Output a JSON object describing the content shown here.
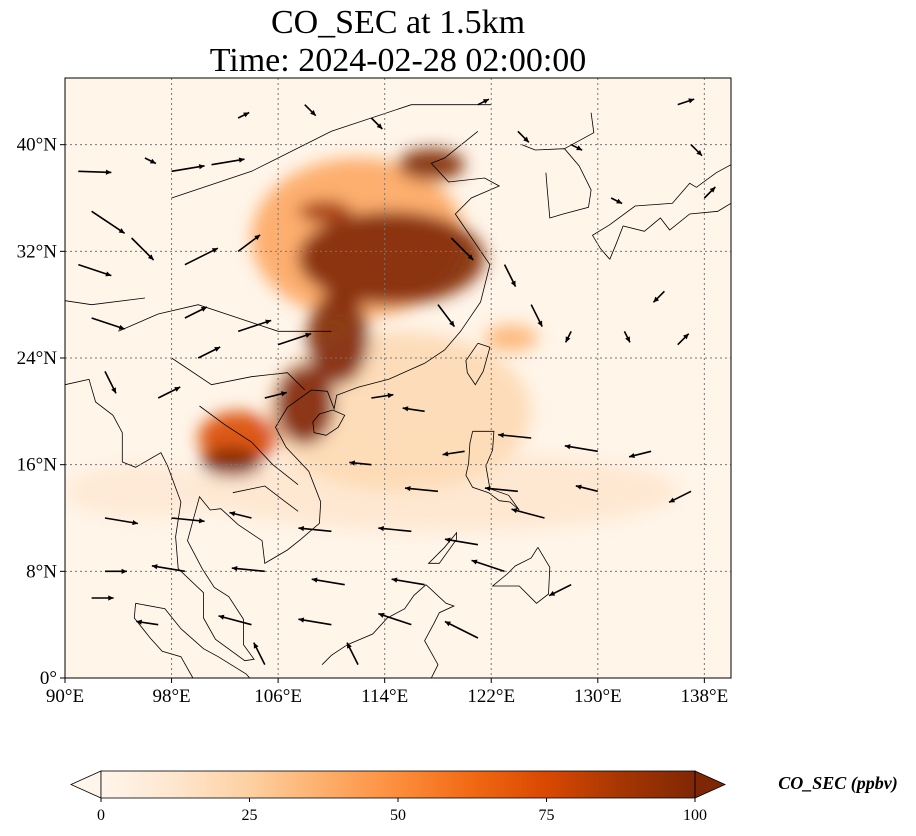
{
  "title": {
    "line1": "CO_SEC at 1.5km",
    "line2": "Time: 2024-02-28 02:00:00"
  },
  "map": {
    "lon_range": [
      90,
      140
    ],
    "lat_range": [
      0,
      45
    ],
    "x_ticks": [
      "90°E",
      "98°E",
      "106°E",
      "114°E",
      "122°E",
      "130°E",
      "138°E"
    ],
    "x_tick_values": [
      90,
      98,
      106,
      114,
      122,
      130,
      138
    ],
    "y_ticks": [
      "0°",
      "8°N",
      "16°N",
      "24°N",
      "32°N",
      "40°N"
    ],
    "y_tick_values": [
      0,
      8,
      16,
      24,
      32,
      40
    ],
    "gridlines": true,
    "background_color": "#fff5e9",
    "coastline_color": "#000000"
  },
  "colorbar": {
    "label": "CO_SEC (ppbv)",
    "ticks": [
      "0",
      "25",
      "50",
      "75",
      "100"
    ],
    "min": 0,
    "max": 100,
    "colormap": [
      "#fff5eb",
      "#fee6ce",
      "#fdd0a2",
      "#fdae6b",
      "#fd8d3c",
      "#f16913",
      "#d94801",
      "#a63603",
      "#7f2704"
    ],
    "extend": "both"
  },
  "plumes": [
    {
      "lon": 114.5,
      "lat": 31.5,
      "value": 100,
      "rx": 7,
      "ry": 3.5
    },
    {
      "lon": 117.5,
      "lat": 38.5,
      "value": 100,
      "rx": 2.5,
      "ry": 1.2
    },
    {
      "lon": 110.5,
      "lat": 25.5,
      "value": 100,
      "rx": 2.3,
      "ry": 3.5
    },
    {
      "lon": 108,
      "lat": 20.5,
      "value": 100,
      "rx": 2.2,
      "ry": 3
    },
    {
      "lon": 102.5,
      "lat": 16.2,
      "value": 100,
      "rx": 2.3,
      "ry": 1.1
    },
    {
      "lon": 109.5,
      "lat": 35,
      "value": 90,
      "rx": 2,
      "ry": 0.8
    },
    {
      "lon": 103,
      "lat": 18,
      "value": 75,
      "rx": 3,
      "ry": 2
    },
    {
      "lon": 112,
      "lat": 33,
      "value": 40,
      "rx": 8,
      "ry": 6
    },
    {
      "lon": 123.5,
      "lat": 25.5,
      "value": 35,
      "rx": 2,
      "ry": 1
    },
    {
      "lon": 115,
      "lat": 20,
      "value": 20,
      "rx": 10,
      "ry": 6
    },
    {
      "lon": 118,
      "lat": 14,
      "value": 12,
      "rx": 18,
      "ry": 3
    },
    {
      "lon": 96,
      "lat": 14,
      "value": 10,
      "rx": 6,
      "ry": 2
    }
  ],
  "wind_vectors": [
    {
      "lon": 91,
      "lat": 38,
      "u": 3,
      "v": -0.1
    },
    {
      "lon": 92,
      "lat": 35,
      "u": 3,
      "v": -2
    },
    {
      "lon": 91,
      "lat": 31,
      "u": 3,
      "v": -1
    },
    {
      "lon": 92,
      "lat": 27,
      "u": 3,
      "v": -1
    },
    {
      "lon": 93,
      "lat": 23,
      "u": 1,
      "v": -2
    },
    {
      "lon": 96,
      "lat": 39,
      "u": 1,
      "v": -0.5
    },
    {
      "lon": 98,
      "lat": 38,
      "u": 3,
      "v": 0.5
    },
    {
      "lon": 101,
      "lat": 38.5,
      "u": 3,
      "v": 0.5
    },
    {
      "lon": 95,
      "lat": 33,
      "u": 2,
      "v": -2
    },
    {
      "lon": 99,
      "lat": 31,
      "u": 3,
      "v": 1.5
    },
    {
      "lon": 103,
      "lat": 32,
      "u": 2,
      "v": 1.5
    },
    {
      "lon": 99,
      "lat": 27,
      "u": 2,
      "v": 1
    },
    {
      "lon": 103,
      "lat": 26,
      "u": 3,
      "v": 1
    },
    {
      "lon": 106,
      "lat": 25,
      "u": 3,
      "v": 1
    },
    {
      "lon": 100,
      "lat": 24,
      "u": 2,
      "v": 1
    },
    {
      "lon": 97,
      "lat": 21,
      "u": 2,
      "v": 1
    },
    {
      "lon": 105,
      "lat": 21,
      "u": 2,
      "v": 0.5
    },
    {
      "lon": 113,
      "lat": 21,
      "u": 2,
      "v": 0.3
    },
    {
      "lon": 117,
      "lat": 20,
      "u": -2,
      "v": 0.3
    },
    {
      "lon": 120,
      "lat": 17,
      "u": -2,
      "v": -0.3
    },
    {
      "lon": 125,
      "lat": 18,
      "u": -3,
      "v": 0.3
    },
    {
      "lon": 130,
      "lat": 17,
      "u": -3,
      "v": 0.5
    },
    {
      "lon": 134,
      "lat": 17,
      "u": -2,
      "v": -0.5
    },
    {
      "lon": 113,
      "lat": 16,
      "u": -2,
      "v": 0.2
    },
    {
      "lon": 118,
      "lat": 14,
      "u": -3,
      "v": 0.3
    },
    {
      "lon": 124,
      "lat": 14,
      "u": -3,
      "v": 0.3
    },
    {
      "lon": 130,
      "lat": 14,
      "u": -2,
      "v": 0.5
    },
    {
      "lon": 137,
      "lat": 14,
      "u": -2,
      "v": -1
    },
    {
      "lon": 93,
      "lat": 12,
      "u": 3,
      "v": -0.5
    },
    {
      "lon": 98,
      "lat": 12,
      "u": 3,
      "v": -0.3
    },
    {
      "lon": 104,
      "lat": 12,
      "u": -2,
      "v": 0.5
    },
    {
      "lon": 110,
      "lat": 11,
      "u": -3,
      "v": 0.3
    },
    {
      "lon": 116,
      "lat": 11,
      "u": -3,
      "v": 0.3
    },
    {
      "lon": 121,
      "lat": 10,
      "u": -3,
      "v": 0.5
    },
    {
      "lon": 126,
      "lat": 12,
      "u": -3,
      "v": 0.8
    },
    {
      "lon": 93,
      "lat": 8,
      "u": 2,
      "v": 0
    },
    {
      "lon": 99,
      "lat": 8,
      "u": -3,
      "v": 0.5
    },
    {
      "lon": 105,
      "lat": 8,
      "u": -3,
      "v": 0.3
    },
    {
      "lon": 111,
      "lat": 7,
      "u": -3,
      "v": 0.5
    },
    {
      "lon": 117,
      "lat": 7,
      "u": -3,
      "v": 0.5
    },
    {
      "lon": 123,
      "lat": 8,
      "u": -3,
      "v": 1
    },
    {
      "lon": 128,
      "lat": 7,
      "u": -2,
      "v": -1
    },
    {
      "lon": 92,
      "lat": 6,
      "u": 2,
      "v": 0
    },
    {
      "lon": 97,
      "lat": 4,
      "u": -2,
      "v": 0.3
    },
    {
      "lon": 104,
      "lat": 4,
      "u": -3,
      "v": 0.8
    },
    {
      "lon": 110,
      "lat": 4,
      "u": -3,
      "v": 0.5
    },
    {
      "lon": 116,
      "lat": 4,
      "u": -3,
      "v": 1
    },
    {
      "lon": 121,
      "lat": 3,
      "u": -3,
      "v": 1.5
    },
    {
      "lon": 105,
      "lat": 1,
      "u": -1,
      "v": 2
    },
    {
      "lon": 112,
      "lat": 1,
      "u": -1,
      "v": 2
    },
    {
      "lon": 118,
      "lat": 28,
      "u": 1.5,
      "v": -2
    },
    {
      "lon": 119,
      "lat": 33,
      "u": 2,
      "v": -2
    },
    {
      "lon": 123,
      "lat": 31,
      "u": 1,
      "v": -2
    },
    {
      "lon": 125,
      "lat": 28,
      "u": 1,
      "v": -2
    },
    {
      "lon": 128,
      "lat": 26,
      "u": -0.5,
      "v": -1
    },
    {
      "lon": 132,
      "lat": 26,
      "u": 0.5,
      "v": -1
    },
    {
      "lon": 136,
      "lat": 25,
      "u": 1,
      "v": 1
    },
    {
      "lon": 135,
      "lat": 29,
      "u": -1,
      "v": -1
    },
    {
      "lon": 131,
      "lat": 36,
      "u": 1,
      "v": -0.5
    },
    {
      "lon": 128,
      "lat": 40,
      "u": 1,
      "v": -0.5
    },
    {
      "lon": 124,
      "lat": 41,
      "u": 1,
      "v": -1
    },
    {
      "lon": 113,
      "lat": 42,
      "u": 1,
      "v": -1
    },
    {
      "lon": 108,
      "lat": 43,
      "u": 1,
      "v": -1
    },
    {
      "lon": 103,
      "lat": 42,
      "u": 1,
      "v": 0.5
    },
    {
      "lon": 121,
      "lat": 43,
      "u": 1,
      "v": 0.5
    },
    {
      "lon": 137,
      "lat": 40,
      "u": 1,
      "v": -1
    },
    {
      "lon": 138,
      "lat": 36,
      "u": 1,
      "v": 1
    },
    {
      "lon": 136,
      "lat": 43,
      "u": 1.5,
      "v": 0.5
    }
  ]
}
